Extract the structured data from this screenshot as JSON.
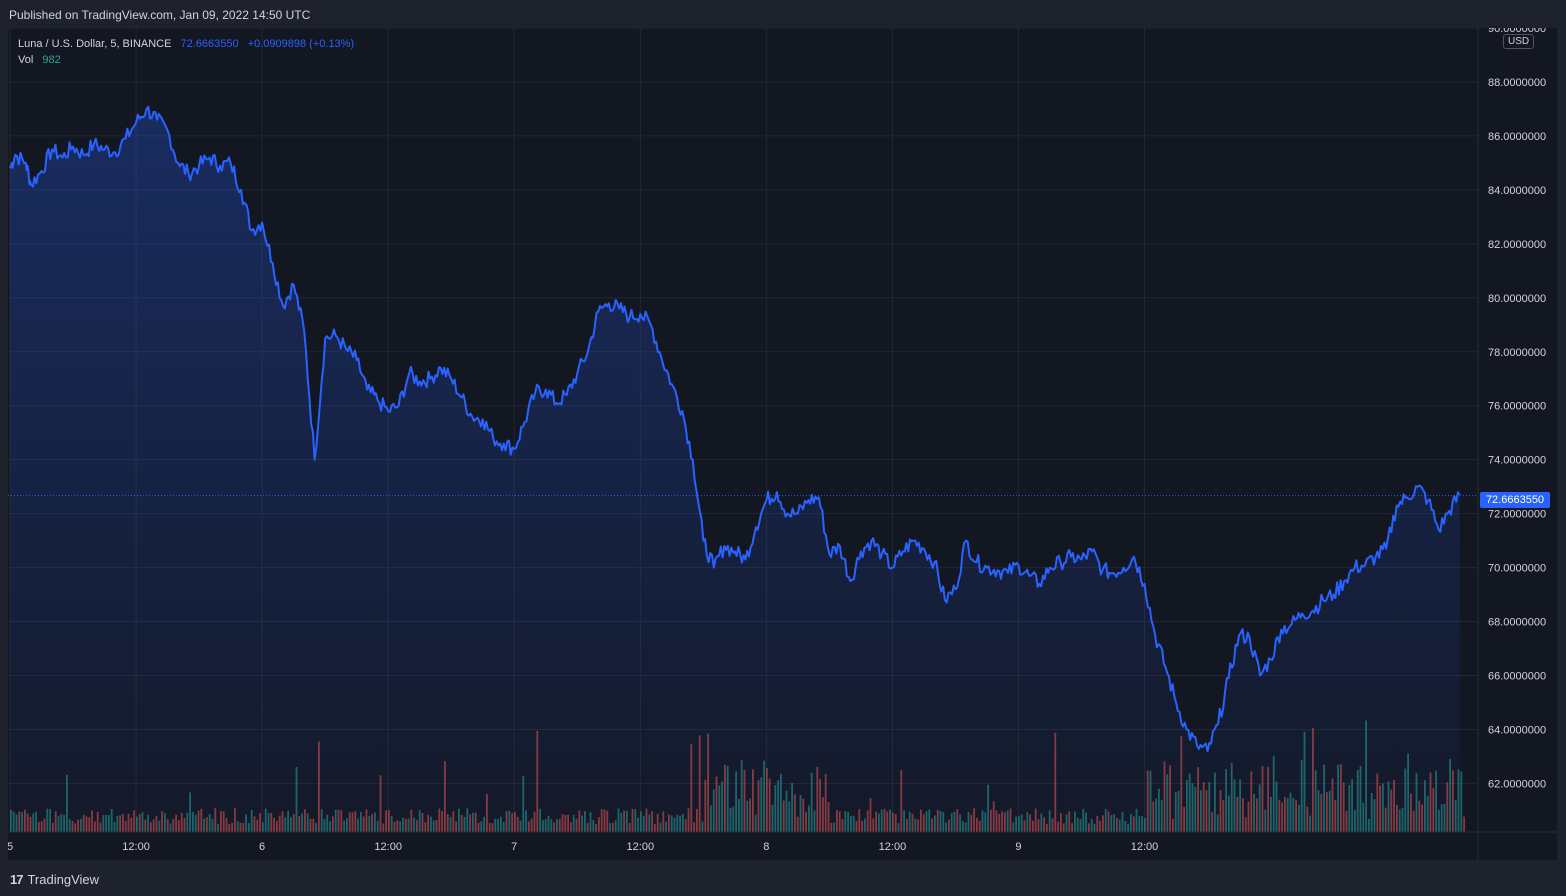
{
  "header": {
    "published": "Published on TradingView.com, Jan 09, 2022 14:50 UTC"
  },
  "legend": {
    "symbol": "Luna / U.S. Dollar, 5, BINANCE",
    "last": "72.6663550",
    "change": "+0.0909898 (+0.13%)",
    "vol_label": "Vol",
    "vol_value": "982"
  },
  "currency_label": "USD",
  "price_tag": "72.6663550",
  "footer": {
    "logo_text": "TradingView",
    "logo_mark": "17"
  },
  "colors": {
    "line": "#2962ff",
    "up_volume": "#26a69a",
    "down_volume": "#ef5350",
    "background": "#131722",
    "grid": "#232732"
  },
  "chart_data": {
    "type": "area",
    "title": "Luna / U.S. Dollar, 5, BINANCE",
    "x_tick_labels": [
      "5",
      "12:00",
      "6",
      "12:00",
      "7",
      "12:00",
      "8",
      "12:00",
      "9",
      "12:00"
    ],
    "y_tick_labels": [
      "90.0000000",
      "88.0000000",
      "86.0000000",
      "84.0000000",
      "82.0000000",
      "80.0000000",
      "78.0000000",
      "76.0000000",
      "74.0000000",
      "72.0000000",
      "70.0000000",
      "68.0000000",
      "66.0000000",
      "64.0000000",
      "62.0000000"
    ],
    "ylim": [
      60.2,
      90.0
    ],
    "xlim_hours": [
      0,
      106.8
    ],
    "x_unit": "hours since Jan 5 00:00 UTC",
    "last_price": 72.666355,
    "grid": true,
    "series": [
      {
        "name": "Luna / U.S. Dollar",
        "points": [
          [
            0,
            84.8
          ],
          [
            0.5,
            85.3
          ],
          [
            1.5,
            85.0
          ],
          [
            2,
            84.2
          ],
          [
            3,
            84.7
          ],
          [
            4,
            85.5
          ],
          [
            5,
            85.2
          ],
          [
            6,
            85.6
          ],
          [
            7,
            85.3
          ],
          [
            8,
            85.7
          ],
          [
            9,
            85.5
          ],
          [
            10,
            85.4
          ],
          [
            11,
            85.9
          ],
          [
            12,
            86.5
          ],
          [
            13,
            87.0
          ],
          [
            14,
            86.6
          ],
          [
            15,
            86.2
          ],
          [
            16,
            85.0
          ],
          [
            17,
            84.6
          ],
          [
            18,
            84.9
          ],
          [
            19,
            85.2
          ],
          [
            20,
            84.9
          ],
          [
            21,
            85.0
          ],
          [
            22,
            84.0
          ],
          [
            23,
            82.5
          ],
          [
            24,
            82.8
          ],
          [
            25,
            81.3
          ],
          [
            26,
            79.7
          ],
          [
            27,
            80.5
          ],
          [
            28,
            78.8
          ],
          [
            29,
            74.0
          ],
          [
            30,
            78.5
          ],
          [
            31,
            78.6
          ],
          [
            32,
            78.1
          ],
          [
            33,
            77.7
          ],
          [
            34,
            76.6
          ],
          [
            35,
            76.2
          ],
          [
            36,
            75.8
          ],
          [
            37,
            76.0
          ],
          [
            38,
            77.2
          ],
          [
            39,
            76.9
          ],
          [
            40,
            77.0
          ],
          [
            41,
            77.4
          ],
          [
            42,
            77.0
          ],
          [
            43,
            76.3
          ],
          [
            44,
            75.6
          ],
          [
            45,
            75.5
          ],
          [
            46,
            74.8
          ],
          [
            47,
            74.6
          ],
          [
            48,
            74.4
          ],
          [
            49,
            75.4
          ],
          [
            50,
            76.5
          ],
          [
            51,
            76.6
          ],
          [
            52,
            76.1
          ],
          [
            53,
            76.4
          ],
          [
            54,
            77.2
          ],
          [
            55,
            78.0
          ],
          [
            56,
            79.5
          ],
          [
            57,
            79.8
          ],
          [
            58,
            79.6
          ],
          [
            59,
            79.3
          ],
          [
            60,
            79.4
          ],
          [
            61,
            79.0
          ],
          [
            62,
            77.8
          ],
          [
            63,
            76.8
          ],
          [
            64,
            75.8
          ],
          [
            65,
            74.0
          ],
          [
            66,
            71.0
          ],
          [
            67,
            70.0
          ],
          [
            68,
            70.8
          ],
          [
            69,
            70.6
          ],
          [
            70,
            70.3
          ],
          [
            71,
            71.5
          ],
          [
            72,
            72.5
          ],
          [
            73,
            72.8
          ],
          [
            74,
            72.0
          ],
          [
            75,
            72.0
          ],
          [
            76,
            72.5
          ],
          [
            77,
            72.6
          ],
          [
            78,
            70.5
          ],
          [
            79,
            70.8
          ],
          [
            80,
            69.5
          ],
          [
            81,
            70.6
          ],
          [
            82,
            71.0
          ],
          [
            83,
            70.5
          ],
          [
            84,
            70.0
          ],
          [
            85,
            70.6
          ],
          [
            86,
            71.0
          ],
          [
            87,
            70.7
          ],
          [
            88,
            70.2
          ],
          [
            89,
            68.8
          ],
          [
            90,
            69.2
          ],
          [
            91,
            71.0
          ],
          [
            92,
            70.2
          ],
          [
            93,
            70.0
          ],
          [
            94,
            69.9
          ],
          [
            95,
            69.8
          ],
          [
            96,
            70.1
          ],
          [
            97,
            69.7
          ],
          [
            98,
            69.4
          ],
          [
            99,
            70.0
          ],
          [
            100,
            70.2
          ],
          [
            101,
            70.4
          ],
          [
            102,
            70.3
          ],
          [
            103,
            70.6
          ],
          [
            104,
            69.9
          ],
          [
            105,
            69.8
          ],
          [
            106,
            70.0
          ],
          [
            107,
            70.4
          ],
          [
            108,
            69.4
          ],
          [
            109,
            67.5
          ],
          [
            110,
            66.3
          ],
          [
            111,
            65.0
          ],
          [
            112,
            64.0
          ],
          [
            113,
            63.4
          ],
          [
            114,
            63.2
          ],
          [
            115,
            64.2
          ],
          [
            116,
            65.9
          ],
          [
            117,
            67.5
          ],
          [
            118,
            67.4
          ],
          [
            119,
            66.0
          ],
          [
            120,
            66.6
          ],
          [
            121,
            67.7
          ],
          [
            122,
            67.9
          ],
          [
            123,
            68.3
          ],
          [
            124,
            68.4
          ],
          [
            125,
            68.8
          ],
          [
            126,
            69.0
          ],
          [
            127,
            69.5
          ],
          [
            128,
            70.0
          ],
          [
            129,
            70.1
          ],
          [
            130,
            70.4
          ],
          [
            131,
            70.7
          ],
          [
            132,
            72.3
          ],
          [
            133,
            72.6
          ],
          [
            134,
            73.0
          ],
          [
            135,
            72.5
          ],
          [
            136,
            71.4
          ],
          [
            137,
            72.1
          ],
          [
            138,
            72.7
          ]
        ]
      }
    ]
  }
}
